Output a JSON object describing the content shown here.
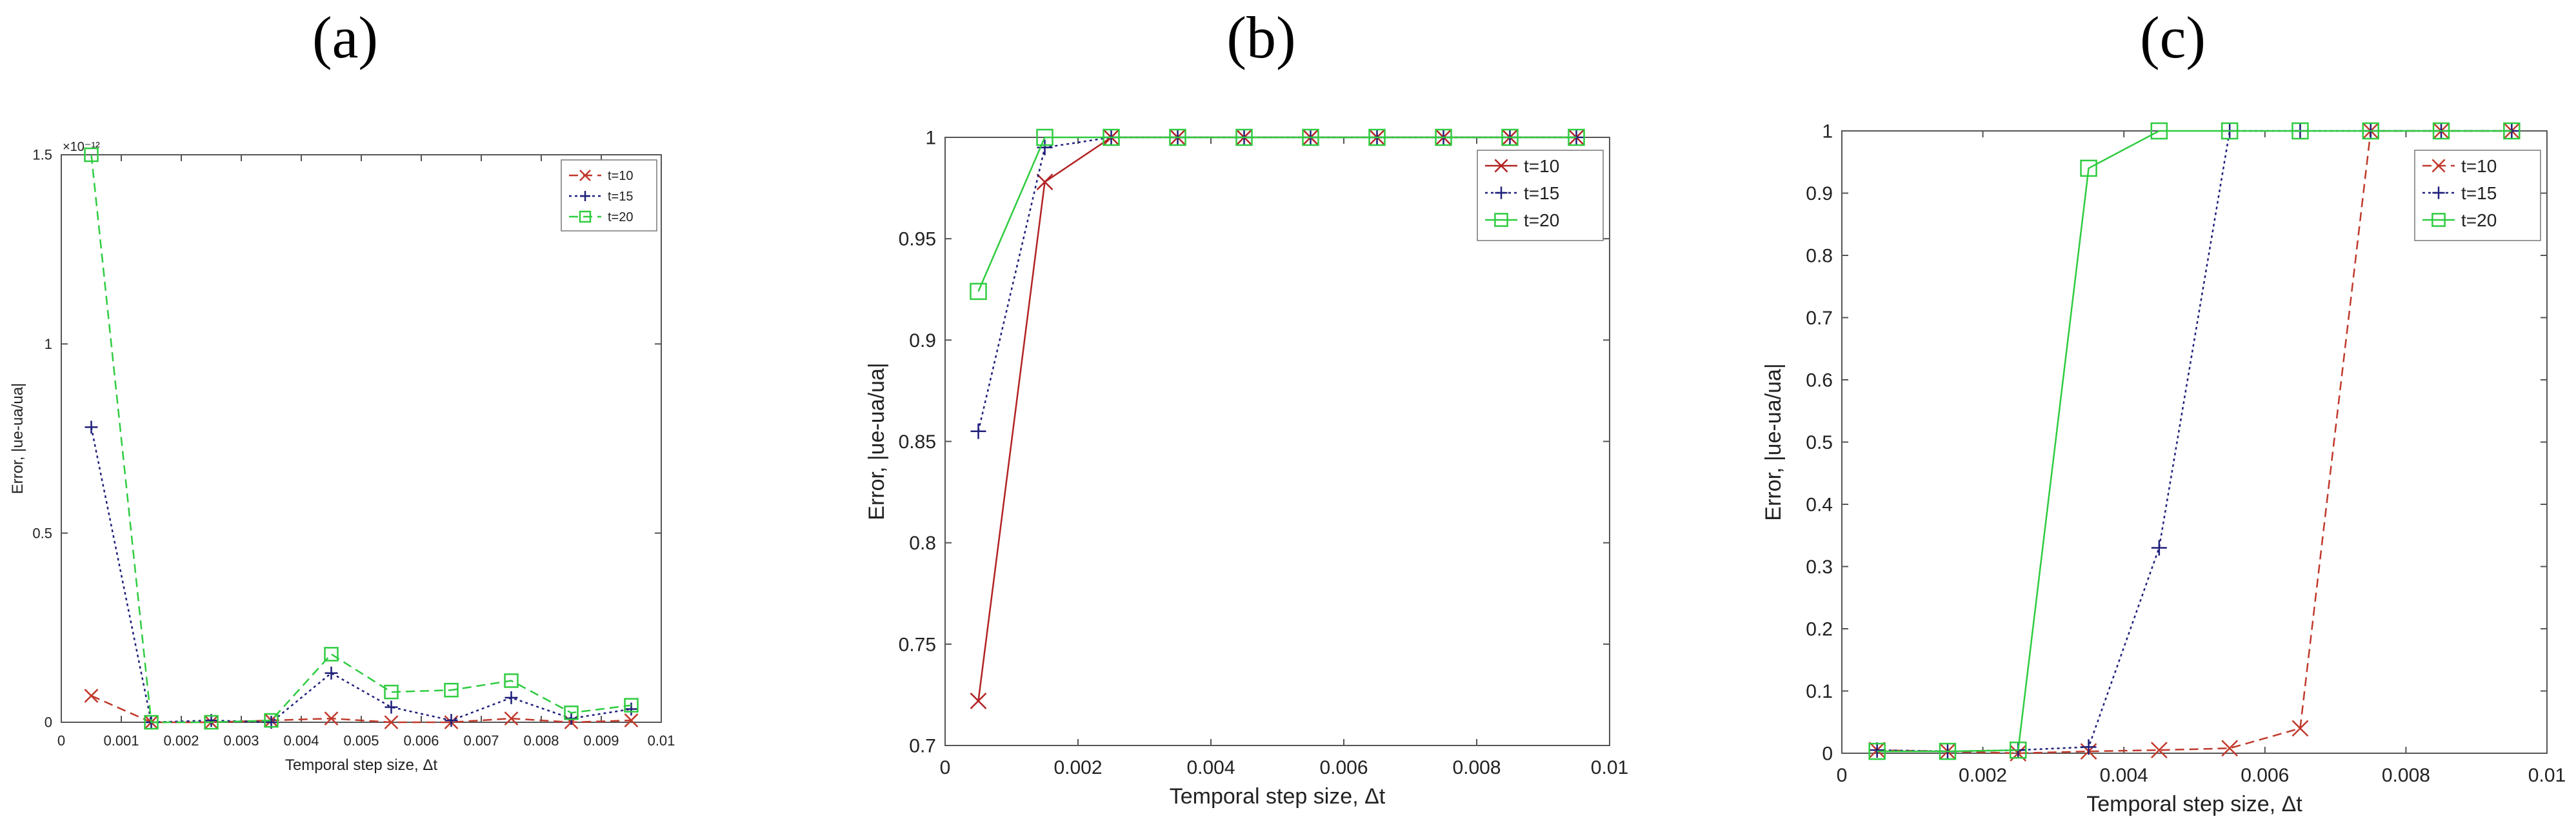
{
  "panel_labels": [
    "(a)",
    "(b)",
    "(c)"
  ],
  "chart_data": [
    {
      "type": "line",
      "panel": "(a)",
      "xlabel": "Temporal step size, Δt",
      "ylabel": "Error, |ue-ua/ua|",
      "y_exponent_label": "×10⁻¹²",
      "xlim": [
        0,
        0.01
      ],
      "ylim": [
        0,
        1.5
      ],
      "xticks": [
        "0",
        "0.001",
        "0.002",
        "0.003",
        "0.004",
        "0.005",
        "0.006",
        "0.007",
        "0.008",
        "0.009",
        "0.01"
      ],
      "yticks": [
        "0",
        "0.5",
        "1",
        "1.5"
      ],
      "legend_position": "top-right",
      "x": [
        0.0005,
        0.0015,
        0.0025,
        0.0035,
        0.0045,
        0.0055,
        0.0065,
        0.0075,
        0.0085,
        0.0095
      ],
      "series": [
        {
          "name": "t=10",
          "color": "#c0392b",
          "marker": "x",
          "dash": "dashed",
          "values": [
            0.07,
            0.0,
            0.0,
            0.005,
            0.01,
            0.0,
            0.0,
            0.01,
            0.0,
            0.005
          ]
        },
        {
          "name": "t=15",
          "color": "#1f1f7a",
          "marker": "+",
          "dash": "dotted",
          "values": [
            0.78,
            0.0,
            0.005,
            0.0,
            0.13,
            0.04,
            0.005,
            0.065,
            0.01,
            0.035
          ]
        },
        {
          "name": "t=20",
          "color": "#2ecc40",
          "marker": "square",
          "dash": "dashed",
          "values": [
            1.5,
            0.0,
            0.0,
            0.005,
            0.18,
            0.08,
            0.085,
            0.11,
            0.025,
            0.045
          ]
        }
      ]
    },
    {
      "type": "line",
      "panel": "(b)",
      "xlabel": "Temporal step size, Δt",
      "ylabel": "Error, |ue-ua/ua|",
      "xlim": [
        0,
        0.01
      ],
      "ylim": [
        0.7,
        1.0
      ],
      "xticks": [
        "0",
        "0.002",
        "0.004",
        "0.006",
        "0.008",
        "0.01"
      ],
      "yticks": [
        "0.7",
        "0.75",
        "0.8",
        "0.85",
        "0.9",
        "0.95",
        "1"
      ],
      "legend_position": "top-right",
      "x": [
        0.0005,
        0.0015,
        0.0025,
        0.0035,
        0.0045,
        0.0055,
        0.0065,
        0.0075,
        0.0085,
        0.0095
      ],
      "series": [
        {
          "name": "t=10",
          "color": "#b22222",
          "marker": "x",
          "dash": "solid",
          "values": [
            0.722,
            0.978,
            1.0,
            1.0,
            1.0,
            1.0,
            1.0,
            1.0,
            1.0,
            1.0
          ]
        },
        {
          "name": "t=15",
          "color": "#1f1f7a",
          "marker": "+",
          "dash": "dotted",
          "values": [
            0.855,
            0.995,
            1.0,
            1.0,
            1.0,
            1.0,
            1.0,
            1.0,
            1.0,
            1.0
          ]
        },
        {
          "name": "t=20",
          "color": "#2ecc40",
          "marker": "square",
          "dash": "solid",
          "values": [
            0.924,
            1.0,
            1.0,
            1.0,
            1.0,
            1.0,
            1.0,
            1.0,
            1.0,
            1.0
          ]
        }
      ]
    },
    {
      "type": "line",
      "panel": "(c)",
      "xlabel": "Temporal step size, Δt",
      "ylabel": "Error, |ue-ua/ua|",
      "xlim": [
        0,
        0.01
      ],
      "ylim": [
        0,
        1.0
      ],
      "xticks": [
        "0",
        "0.002",
        "0.004",
        "0.006",
        "0.008",
        "0.01"
      ],
      "yticks": [
        "0",
        "0.1",
        "0.2",
        "0.3",
        "0.4",
        "0.5",
        "0.6",
        "0.7",
        "0.8",
        "0.9",
        "1"
      ],
      "legend_position": "top-right",
      "x": [
        0.0005,
        0.0015,
        0.0025,
        0.0035,
        0.0045,
        0.0055,
        0.0065,
        0.0075,
        0.0085,
        0.0095
      ],
      "series": [
        {
          "name": "t=10",
          "color": "#c0392b",
          "marker": "x",
          "dash": "dashed",
          "values": [
            0.005,
            0.003,
            0.0,
            0.003,
            0.005,
            0.008,
            0.04,
            1.0,
            1.0,
            1.0
          ]
        },
        {
          "name": "t=15",
          "color": "#1f1f7a",
          "marker": "+",
          "dash": "dotted",
          "values": [
            0.005,
            0.003,
            0.005,
            0.01,
            0.33,
            1.0,
            1.0,
            1.0,
            1.0,
            1.0
          ]
        },
        {
          "name": "t=20",
          "color": "#2ecc40",
          "marker": "square",
          "dash": "solid",
          "values": [
            0.003,
            0.003,
            0.005,
            0.94,
            1.0,
            1.0,
            1.0,
            1.0,
            1.0,
            1.0
          ]
        }
      ]
    }
  ]
}
